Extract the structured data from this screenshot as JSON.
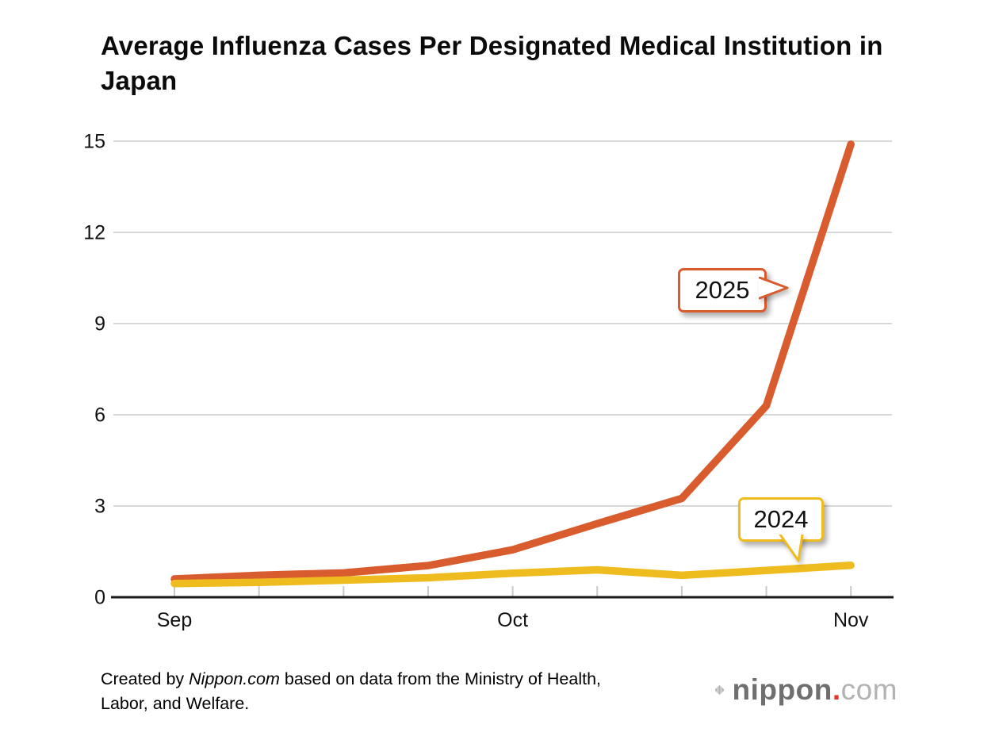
{
  "title": "Average Influenza Cases Per Designated Medical Institution in Japan",
  "chart_data": {
    "type": "line",
    "title": "Average Influenza Cases Per Designated Medical Institution in Japan",
    "x_points": 9,
    "x_month_labels": [
      {
        "position": 0,
        "label": "Sep"
      },
      {
        "position": 4,
        "label": "Oct"
      },
      {
        "position": 8,
        "label": "Nov"
      }
    ],
    "y_ticks": [
      0,
      3,
      6,
      9,
      12,
      15
    ],
    "ylim": [
      0,
      15
    ],
    "grid": true,
    "legend_position": "inline-callouts",
    "series": [
      {
        "name": "2025",
        "color": "#D85C2E",
        "values": [
          0.6,
          0.72,
          0.8,
          1.04,
          1.56,
          2.42,
          3.25,
          6.3,
          14.9
        ]
      },
      {
        "name": "2024",
        "color": "#EFBC1F",
        "values": [
          0.45,
          0.49,
          0.56,
          0.64,
          0.79,
          0.9,
          0.72,
          0.88,
          1.05
        ]
      }
    ],
    "annotations": [
      {
        "label": "2025",
        "series": "2025"
      },
      {
        "label": "2024",
        "series": "2024"
      }
    ]
  },
  "callouts": {
    "label_2025": "2025",
    "label_2024": "2024"
  },
  "footer": {
    "prefix": "Created by ",
    "source": "Nippon.com",
    "suffix": " based on data from the Ministry of Health, Labor, and Welfare."
  },
  "logo": {
    "word": "nippon",
    "dot": ".",
    "tld": "com",
    "icon": "waveform-icon",
    "dot_color": "#e0362c"
  }
}
